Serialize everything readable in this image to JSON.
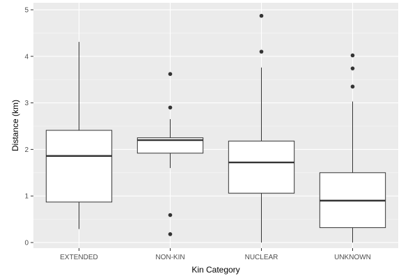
{
  "chart_data": {
    "type": "boxplot",
    "xlabel": "Kin Category",
    "ylabel": "Distance (km)",
    "categories": [
      "EXTENDED",
      "NON-KIN",
      "NUCLEAR",
      "UNKNOWN"
    ],
    "ylim": [
      -0.12,
      5.15
    ],
    "yticks": [
      0,
      1,
      2,
      3,
      4,
      5
    ],
    "grid": true,
    "boxes": [
      {
        "category": "EXTENDED",
        "whisker_low": 0.29,
        "q1": 0.87,
        "median": 1.86,
        "q3": 2.41,
        "whisker_high": 4.31,
        "outliers": []
      },
      {
        "category": "NON-KIN",
        "whisker_low": 1.6,
        "q1": 1.92,
        "median": 2.2,
        "q3": 2.25,
        "whisker_high": 2.65,
        "outliers": [
          3.62,
          2.9,
          0.59,
          0.18
        ]
      },
      {
        "category": "NUCLEAR",
        "whisker_low": 0.0,
        "q1": 1.06,
        "median": 1.72,
        "q3": 2.18,
        "whisker_high": 3.76,
        "outliers": [
          4.87,
          4.1
        ]
      },
      {
        "category": "UNKNOWN",
        "whisker_low": 0.0,
        "q1": 0.32,
        "median": 0.9,
        "q3": 1.5,
        "whisker_high": 3.03,
        "outliers": [
          4.02,
          3.74,
          3.35
        ]
      }
    ],
    "colors": {
      "panel": "#ebebeb",
      "grid_major": "#ffffff",
      "box_fill": "#ffffff",
      "box_line": "#333333",
      "outlier": "#333333"
    }
  }
}
